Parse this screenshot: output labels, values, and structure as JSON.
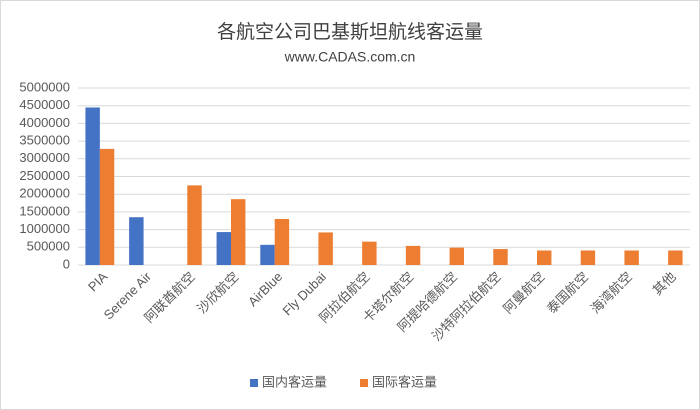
{
  "chart_data": {
    "type": "bar",
    "title": "各航空公司巴基斯坦航线客运量",
    "subtitle": "www.CADAS.com.cn",
    "categories": [
      "PIA",
      "Serene Air",
      "阿联酋航空",
      "沙欣航空",
      "AirBlue",
      "Fly Dubai",
      "阿拉伯航空",
      "卡塔尔航空",
      "阿提哈德航空",
      "沙特阿拉伯航空",
      "阿曼航空",
      "泰国航空",
      "海湾航空",
      "其他"
    ],
    "series": [
      {
        "name": "国内客运量",
        "color": "#4472c4",
        "values": [
          4450000,
          1350000,
          null,
          930000,
          570000,
          null,
          null,
          null,
          null,
          null,
          null,
          null,
          null,
          null
        ]
      },
      {
        "name": "国际客运量",
        "color": "#ed7d31",
        "values": [
          3280000,
          null,
          2250000,
          1860000,
          1300000,
          920000,
          660000,
          540000,
          490000,
          450000,
          410000,
          410000,
          410000,
          410000
        ]
      }
    ],
    "ylim": [
      0,
      5000000
    ],
    "yticks": [
      0,
      500000,
      1000000,
      1500000,
      2000000,
      2500000,
      3000000,
      3500000,
      4000000,
      4500000,
      5000000
    ],
    "grid": true,
    "legend": "bottom"
  }
}
